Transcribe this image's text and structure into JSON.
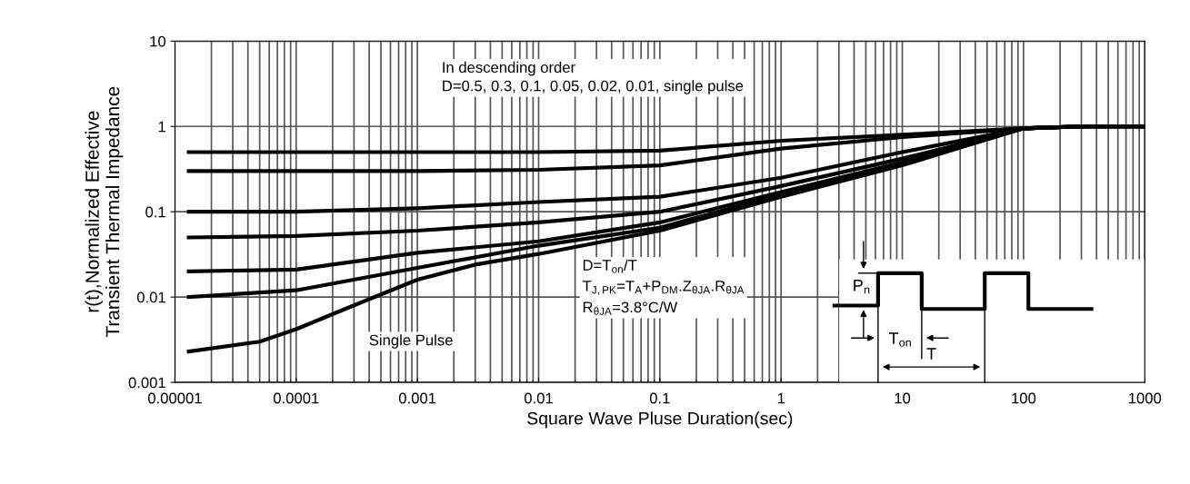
{
  "chart_data": {
    "type": "line",
    "xlabel": "Square Wave Pluse Duration(sec)",
    "ylabel": "r(t),Normalized Effective\nTransient Thermal Impedance",
    "log": "xy",
    "grid": true,
    "legend": false,
    "marker": "none",
    "line_style": "solid",
    "xlim": [
      1e-05,
      1000
    ],
    "ylim": [
      0.001,
      10
    ],
    "xticks": [
      {
        "value": 1e-05,
        "label": "0.00001"
      },
      0.0001,
      0.001,
      0.01,
      0.1,
      1,
      10,
      100,
      1000
    ],
    "yticks": [
      0.001,
      0.01,
      0.1,
      1,
      10
    ],
    "series": [
      {
        "color": "#000000",
        "x": [
          1.3e-05,
          0.0001,
          0.001,
          0.01,
          0.1,
          1,
          10,
          100,
          300,
          1000
        ],
        "values": [
          0.5,
          0.5,
          0.5,
          0.5,
          0.52,
          0.68,
          0.8,
          0.95,
          1,
          1
        ]
      },
      {
        "color": "#000000",
        "x": [
          1.3e-05,
          0.0001,
          0.001,
          0.01,
          0.1,
          1,
          10,
          100,
          300,
          1000
        ],
        "values": [
          0.3,
          0.3,
          0.3,
          0.31,
          0.35,
          0.55,
          0.75,
          0.95,
          1,
          1
        ]
      },
      {
        "color": "#000000",
        "x": [
          1.3e-05,
          0.0001,
          0.001,
          0.01,
          0.1,
          1,
          10,
          100,
          300,
          1000
        ],
        "values": [
          0.1,
          0.1,
          0.11,
          0.13,
          0.15,
          0.25,
          0.5,
          0.95,
          1,
          1
        ]
      },
      {
        "color": "#000000",
        "x": [
          1.3e-05,
          0.0001,
          0.001,
          0.01,
          0.1,
          1,
          10,
          100,
          300,
          1000
        ],
        "values": [
          0.05,
          0.052,
          0.06,
          0.075,
          0.1,
          0.2,
          0.42,
          0.95,
          1,
          1
        ]
      },
      {
        "color": "#000000",
        "x": [
          1.3e-05,
          0.0001,
          0.001,
          0.01,
          0.1,
          1,
          10,
          100,
          300,
          1000
        ],
        "values": [
          0.02,
          0.021,
          0.033,
          0.045,
          0.075,
          0.17,
          0.38,
          0.95,
          1,
          1
        ]
      },
      {
        "color": "#000000",
        "x": [
          1.3e-05,
          0.0001,
          0.001,
          0.01,
          0.1,
          1,
          10,
          100,
          300,
          1000
        ],
        "values": [
          0.01,
          0.012,
          0.022,
          0.04,
          0.065,
          0.16,
          0.36,
          0.95,
          1,
          1
        ]
      },
      {
        "color": "#000000",
        "x": [
          1.3e-05,
          5e-05,
          0.0001,
          0.0003,
          0.001,
          0.003,
          0.01,
          0.1,
          1,
          10,
          100,
          300,
          1000
        ],
        "values": [
          0.0023,
          0.003,
          0.0042,
          0.008,
          0.016,
          0.024,
          0.032,
          0.06,
          0.15,
          0.35,
          0.95,
          1,
          1
        ]
      }
    ],
    "annotations": [
      "In descending order\nD=0.5, 0.3, 0.1, 0.05, 0.02, 0.01, single pulse",
      "Single Pulse",
      "D=T$_{on}$/T\nT$_{J,PK}$=T$_{A}$+P$_{DM}$.Z$_{θJA}$.R$_{θJA}$\nR$_{θJA}$=3.8°C/W",
      "P$_{n}$",
      "T$_{on}$",
      "T"
    ]
  }
}
